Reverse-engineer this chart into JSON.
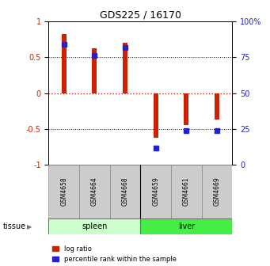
{
  "title": "GDS225 / 16170",
  "samples": [
    "GSM4658",
    "GSM4664",
    "GSM4668",
    "GSM4659",
    "GSM4661",
    "GSM4669"
  ],
  "log_ratios": [
    0.82,
    0.62,
    0.7,
    -0.62,
    -0.45,
    -0.37
  ],
  "percentile_ranks": [
    84,
    76,
    82,
    12,
    24,
    24
  ],
  "tissues": [
    "spleen",
    "spleen",
    "spleen",
    "liver",
    "liver",
    "liver"
  ],
  "tissue_colors": {
    "spleen": "#ccffcc",
    "liver": "#44ee44"
  },
  "bar_color": "#cc2200",
  "dot_color": "#2222cc",
  "left_yticks": [
    1,
    0.5,
    0,
    -0.5,
    -1
  ],
  "right_yticks": [
    100,
    75,
    50,
    25,
    0
  ],
  "ylim": [
    -1.0,
    1.0
  ],
  "background_color": "#ffffff",
  "zero_line_color": "#cc2200",
  "bar_width": 0.15,
  "dot_size": 5
}
